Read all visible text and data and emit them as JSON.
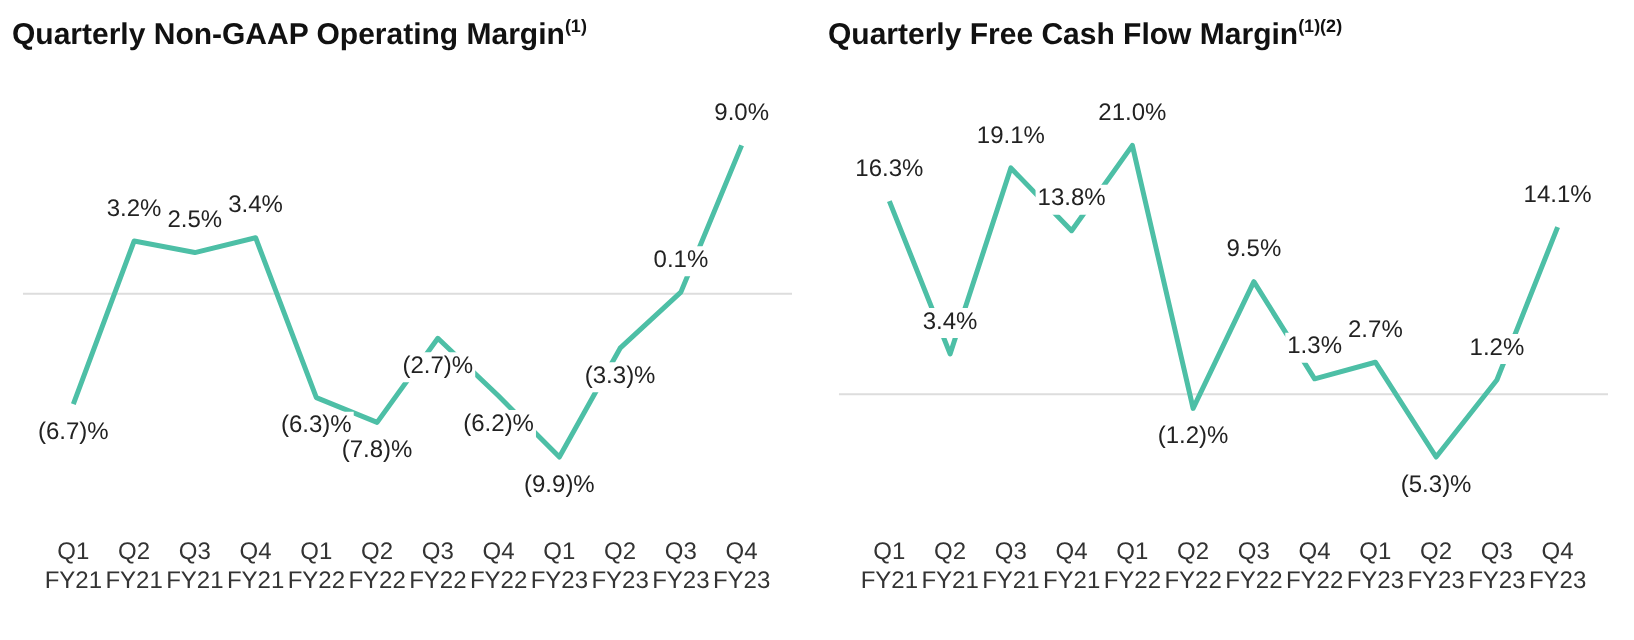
{
  "chart_data": [
    {
      "type": "line",
      "title": "Quarterly Non-GAAP Operating Margin$^{(1)}$",
      "categories": [
        "Q1 FY21",
        "Q2 FY21",
        "Q3 FY21",
        "Q4 FY21",
        "Q1 FY22",
        "Q2 FY22",
        "Q3 FY22",
        "Q4 FY22",
        "Q1 FY23",
        "Q2 FY23",
        "Q3 FY23",
        "Q4 FY23"
      ],
      "values": [
        -6.7,
        3.2,
        2.5,
        3.4,
        -6.3,
        -7.8,
        -2.7,
        -6.2,
        -9.9,
        -3.3,
        0.1,
        9.0
      ],
      "value_labels": [
        "(6.7)%",
        "3.2%",
        "2.5%",
        "3.4%",
        "(6.3)%",
        "(7.8)%",
        "(2.7)%",
        "(6.2)%",
        "(9.9)%",
        "(3.3)%",
        "0.1%",
        "9.0%"
      ],
      "color": "#4dbfa6",
      "ref_lines": [
        {
          "axis": "y",
          "value": 0,
          "color": "#dddddd"
        }
      ],
      "grid": false,
      "legend": false,
      "marker": "none",
      "tick_labels": "x"
    },
    {
      "type": "line",
      "title": "Quarterly Free Cash Flow Margin$^{(1)(2)}$",
      "categories": [
        "Q1 FY21",
        "Q2 FY21",
        "Q3 FY21",
        "Q4 FY21",
        "Q1 FY22",
        "Q2 FY22",
        "Q3 FY22",
        "Q4 FY22",
        "Q1 FY23",
        "Q2 FY23",
        "Q3 FY23",
        "Q4 FY23"
      ],
      "values": [
        16.3,
        3.4,
        19.1,
        13.8,
        21.0,
        -1.2,
        9.5,
        1.3,
        2.7,
        -5.3,
        1.2,
        14.1
      ],
      "value_labels": [
        "16.3%",
        "3.4%",
        "19.1%",
        "13.8%",
        "21.0%",
        "(1.2)%",
        "9.5%",
        "1.3%",
        "2.7%",
        "(5.3)%",
        "1.2%",
        "14.1%"
      ],
      "color": "#4dbfa6",
      "ref_lines": [
        {
          "axis": "y",
          "value": 0,
          "color": "#dddddd"
        }
      ],
      "grid": false,
      "legend": false,
      "marker": "none",
      "tick_labels": "x"
    }
  ]
}
